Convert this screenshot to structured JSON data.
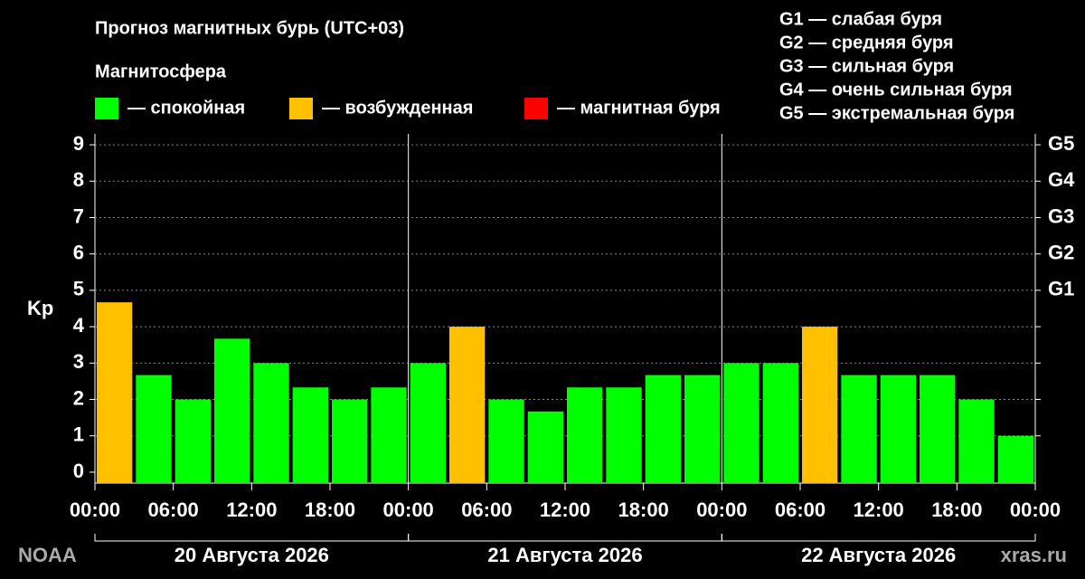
{
  "chart_data": {
    "type": "bar",
    "title": "Прогноз магнитных бурь (UTC+03)",
    "legend_title": "Магнитосфера",
    "legend": [
      {
        "name": "— спокойная",
        "color": "#00ff00"
      },
      {
        "name": "— возбужденная",
        "color": "#ffc000"
      },
      {
        "name": "— магнитная буря",
        "color": "#ff0000"
      }
    ],
    "storm_levels": [
      "G1 — слабая буря",
      "G2 — средняя буря",
      "G3 — сильная буря",
      "G4 — очень сильная буря",
      "G5 — экстремальная буря"
    ],
    "y_label": "Kp",
    "source": "NOAA",
    "site": "xras.ru",
    "days": [
      "20 Августа 2026",
      "21 Августа 2026",
      "22 Августа 2026"
    ],
    "x": [
      0,
      3,
      6,
      9,
      12,
      15,
      18,
      21,
      24,
      27,
      30,
      33,
      36,
      39,
      42,
      45,
      48,
      51,
      54,
      57,
      60,
      63,
      66,
      69
    ],
    "bar_width": 3,
    "values": [
      4.67,
      2.67,
      2,
      3.67,
      3,
      2.33,
      2,
      2.33,
      3,
      4,
      2,
      1.67,
      2.33,
      2.33,
      2.67,
      2.67,
      3,
      3,
      4,
      2.67,
      2.67,
      2.67,
      2,
      1
    ],
    "colors": [
      "#ffc000",
      "#00ff00",
      "#00ff00",
      "#00ff00",
      "#00ff00",
      "#00ff00",
      "#00ff00",
      "#00ff00",
      "#00ff00",
      "#ffc000",
      "#00ff00",
      "#00ff00",
      "#00ff00",
      "#00ff00",
      "#00ff00",
      "#00ff00",
      "#00ff00",
      "#00ff00",
      "#ffc000",
      "#00ff00",
      "#00ff00",
      "#00ff00",
      "#00ff00",
      "#00ff00"
    ],
    "xlim": [
      0,
      72
    ],
    "xticks": [
      {
        "value": 0,
        "label": "00:00"
      },
      {
        "value": 6,
        "label": "06:00"
      },
      {
        "value": 12,
        "label": "12:00"
      },
      {
        "value": 18,
        "label": "18:00"
      },
      {
        "value": 24,
        "label": "00:00"
      },
      {
        "value": 30,
        "label": "06:00"
      },
      {
        "value": 36,
        "label": "12:00"
      },
      {
        "value": 42,
        "label": "18:00"
      },
      {
        "value": 48,
        "label": "00:00"
      },
      {
        "value": 54,
        "label": "06:00"
      },
      {
        "value": 60,
        "label": "12:00"
      },
      {
        "value": 66,
        "label": "18:00"
      },
      {
        "value": 72,
        "label": "00:00"
      }
    ],
    "ylim": [
      -0.3,
      9.3
    ],
    "yticks": [
      0,
      1,
      2,
      3,
      4,
      5,
      6,
      7,
      8,
      9
    ],
    "y2ticks": [
      {
        "value": 1,
        "label": ""
      },
      {
        "value": 2,
        "label": ""
      },
      {
        "value": 3,
        "label": ""
      },
      {
        "value": 4,
        "label": ""
      },
      {
        "value": 5,
        "label": "G1"
      },
      {
        "value": 6,
        "label": "G2"
      },
      {
        "value": 7,
        "label": "G3"
      },
      {
        "value": 8,
        "label": "G4"
      },
      {
        "value": 9,
        "label": "G5"
      }
    ],
    "grid": true
  }
}
